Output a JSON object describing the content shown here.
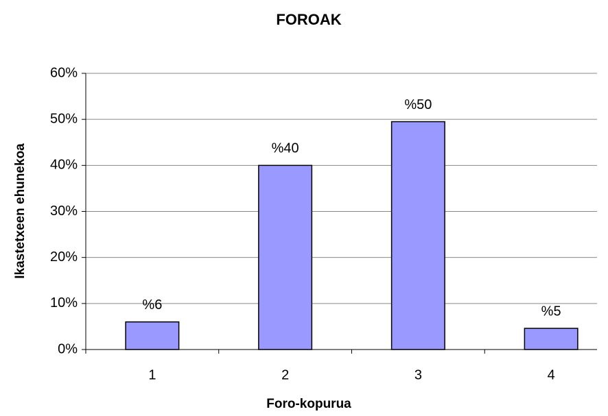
{
  "chart_data": {
    "type": "bar",
    "title": "FOROAK",
    "x_label": "Foro-kopurua",
    "y_label": "Ikastetxeen ehunekoa",
    "categories": [
      "1",
      "2",
      "3",
      "4"
    ],
    "values": [
      6,
      40,
      49.5,
      4.6
    ],
    "value_labels": [
      "%6",
      "%40",
      "%50",
      "%5"
    ],
    "color": "#9999ff",
    "ylim": [
      0,
      60
    ],
    "yticks": [
      {
        "value": 0,
        "label": "0%"
      },
      {
        "value": 10,
        "label": "10%"
      },
      {
        "value": 20,
        "label": "20%"
      },
      {
        "value": 30,
        "label": "30%"
      },
      {
        "value": 40,
        "label": "40%"
      },
      {
        "value": 50,
        "label": "50%"
      },
      {
        "value": 60,
        "label": "60%"
      }
    ],
    "grid": true
  }
}
